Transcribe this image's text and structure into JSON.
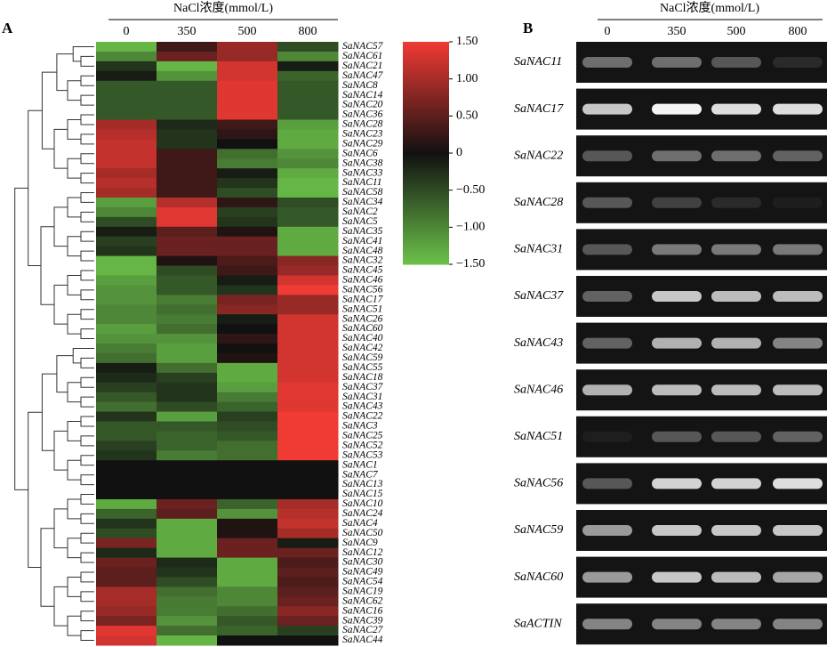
{
  "chart_data": [
    {
      "type": "heatmap",
      "panel_label": "A",
      "x_title": "NaCl浓度(mmol/L)",
      "categories": [
        "0",
        "350",
        "500",
        "800"
      ],
      "rows": [
        "SaNAC57",
        "SaNAC61",
        "SaNAC21",
        "SaNAC47",
        "SaNAC8",
        "SaNAC14",
        "SaNAC20",
        "SaNAC36",
        "SaNAC28",
        "SaNAC23",
        "SaNAC29",
        "SaNAC6",
        "SaNAC38",
        "SaNAC33",
        "SaNAC11",
        "SaNAC58",
        "SaNAC34",
        "SaNAC2",
        "SaNAC5",
        "SaNAC35",
        "SaNAC41",
        "SaNAC48",
        "SaNAC32",
        "SaNAC45",
        "SaNAC46",
        "SaNAC56",
        "SaNAC17",
        "SaNAC51",
        "SaNAC26",
        "SaNAC60",
        "SaNAC40",
        "SaNAC42",
        "SaNAC59",
        "SaNAC55",
        "SaNAC18",
        "SaNAC37",
        "SaNAC31",
        "SaNAC43",
        "SaNAC22",
        "SaNAC3",
        "SaNAC25",
        "SaNAC52",
        "SaNAC53",
        "SaNAC1",
        "SaNAC7",
        "SaNAC13",
        "SaNAC15",
        "SaNAC10",
        "SaNAC24",
        "SaNAC4",
        "SaNAC50",
        "SaNAC9",
        "SaNAC12",
        "SaNAC30",
        "SaNAC49",
        "SaNAC54",
        "SaNAC19",
        "SaNAC62",
        "SaNAC16",
        "SaNAC39",
        "SaNAC27",
        "SaNAC44"
      ],
      "values": [
        [
          -1.4,
          0.3,
          0.9,
          -0.5
        ],
        [
          -1.0,
          0.6,
          0.9,
          -1.0
        ],
        [
          -0.3,
          -1.4,
          1.3,
          -0.1
        ],
        [
          -0.1,
          -1.1,
          1.3,
          -0.7
        ],
        [
          -0.6,
          -0.6,
          1.4,
          -0.6
        ],
        [
          -0.6,
          -0.6,
          1.4,
          -0.6
        ],
        [
          -0.6,
          -0.6,
          1.4,
          -0.6
        ],
        [
          -0.6,
          -0.6,
          1.4,
          -0.6
        ],
        [
          1.0,
          -0.2,
          0.3,
          -1.2
        ],
        [
          1.1,
          -0.3,
          0.2,
          -1.3
        ],
        [
          1.2,
          -0.3,
          0.0,
          -1.3
        ],
        [
          1.2,
          0.3,
          -0.8,
          -1.1
        ],
        [
          1.2,
          0.3,
          -0.9,
          -1.0
        ],
        [
          1.0,
          0.3,
          -0.1,
          -1.3
        ],
        [
          1.1,
          0.3,
          -0.3,
          -1.4
        ],
        [
          1.0,
          0.3,
          -0.5,
          -1.4
        ],
        [
          -1.2,
          1.1,
          0.2,
          -0.5
        ],
        [
          -1.0,
          1.4,
          -0.4,
          -0.6
        ],
        [
          -0.5,
          1.4,
          -0.3,
          -0.6
        ],
        [
          -0.1,
          0.5,
          0.1,
          -1.3
        ],
        [
          -0.4,
          0.6,
          0.6,
          -1.3
        ],
        [
          -0.3,
          0.6,
          0.6,
          -1.3
        ],
        [
          -1.4,
          0.1,
          0.4,
          0.8
        ],
        [
          -1.4,
          -0.5,
          0.3,
          0.9
        ],
        [
          -1.2,
          -0.6,
          -0.1,
          1.3
        ],
        [
          -1.1,
          -0.6,
          -0.3,
          1.5
        ],
        [
          -1.1,
          -0.9,
          0.7,
          0.9
        ],
        [
          -1.0,
          -0.8,
          0.8,
          0.9
        ],
        [
          -1.0,
          -0.9,
          -0.1,
          1.3
        ],
        [
          -1.2,
          -0.8,
          0.0,
          1.3
        ],
        [
          -1.1,
          -1.1,
          0.2,
          1.3
        ],
        [
          -0.9,
          -1.2,
          0.0,
          1.3
        ],
        [
          -0.8,
          -1.2,
          0.1,
          1.3
        ],
        [
          -0.1,
          -0.8,
          -1.3,
          1.3
        ],
        [
          -0.2,
          -0.4,
          -1.3,
          1.3
        ],
        [
          -0.4,
          -0.3,
          -1.2,
          1.4
        ],
        [
          -0.6,
          -0.3,
          -0.9,
          1.4
        ],
        [
          -0.8,
          -0.5,
          -0.7,
          1.4
        ],
        [
          -0.3,
          -1.2,
          -0.4,
          1.5
        ],
        [
          -0.6,
          -0.6,
          -0.5,
          1.5
        ],
        [
          -0.6,
          -0.7,
          -0.6,
          1.5
        ],
        [
          -0.4,
          -0.7,
          -0.8,
          1.5
        ],
        [
          -0.3,
          -0.9,
          -0.8,
          1.5
        ],
        [
          0,
          0,
          0,
          0
        ],
        [
          0,
          0,
          0,
          0
        ],
        [
          0,
          0,
          0,
          0
        ],
        [
          0,
          0,
          0,
          0
        ],
        [
          -1.3,
          0.6,
          -0.7,
          1.0
        ],
        [
          -0.7,
          0.5,
          -1.1,
          1.1
        ],
        [
          -0.3,
          -1.3,
          0.1,
          1.2
        ],
        [
          -0.5,
          -1.3,
          0.1,
          1.0
        ],
        [
          0.7,
          -1.3,
          0.6,
          -0.1
        ],
        [
          -0.2,
          -1.3,
          0.6,
          0.6
        ],
        [
          0.6,
          -0.2,
          -1.3,
          0.4
        ],
        [
          0.5,
          -0.3,
          -1.3,
          0.5
        ],
        [
          0.5,
          -0.5,
          -1.3,
          0.4
        ],
        [
          1.0,
          -0.8,
          -1.0,
          0.5
        ],
        [
          1.0,
          -0.9,
          -1.0,
          0.6
        ],
        [
          0.9,
          -0.9,
          -0.8,
          0.8
        ],
        [
          0.7,
          -1.1,
          -0.6,
          0.6
        ],
        [
          1.4,
          -0.8,
          -0.7,
          -0.4
        ],
        [
          1.3,
          -1.4,
          0.0,
          0.0
        ]
      ],
      "clim": [
        -1.5,
        1.5
      ],
      "colors": [
        "#6cc24a",
        "#111111",
        "#f03a34"
      ],
      "cticks": [
        {
          "value": 1.5,
          "label": "1.50"
        },
        {
          "value": 1,
          "label": "1.00"
        },
        {
          "value": 0.5,
          "label": "0.50"
        },
        0,
        {
          "value": -0.5,
          "label": "−0.50"
        },
        {
          "value": -1,
          "label": "−1.00"
        },
        {
          "value": -1.5,
          "label": "−1.50"
        }
      ]
    },
    {
      "type": "gel",
      "panel_label": "B",
      "x_title": "NaCl浓度(mmol/L)",
      "categories": [
        "0",
        "350",
        "500",
        "800"
      ],
      "rows": [
        "SaNAC11",
        "SaNAC17",
        "SaNAC22",
        "SaNAC28",
        "SaNAC31",
        "SaNAC37",
        "SaNAC43",
        "SaNAC46",
        "SaNAC51",
        "SaNAC56",
        "SaNAC59",
        "SaNAC60",
        "SaACTIN"
      ],
      "values": [
        [
          0.4,
          0.4,
          0.3,
          0.1
        ],
        [
          0.8,
          1,
          0.9,
          0.9
        ],
        [
          0.3,
          0.4,
          0.4,
          0.35
        ],
        [
          0.3,
          0.2,
          0.1,
          0.05
        ],
        [
          0.3,
          0.45,
          0.45,
          0.45
        ],
        [
          0.35,
          0.8,
          0.75,
          0.75
        ],
        [
          0.35,
          0.7,
          0.7,
          0.5
        ],
        [
          0.7,
          0.75,
          0.75,
          0.75
        ],
        [
          0.05,
          0.3,
          0.3,
          0.35
        ],
        [
          0.3,
          0.85,
          0.85,
          0.9
        ],
        [
          0.6,
          0.8,
          0.8,
          0.8
        ],
        [
          0.6,
          0.8,
          0.75,
          0.65
        ],
        [
          0.5,
          0.5,
          0.5,
          0.5
        ]
      ],
      "ylim": [
        0,
        1
      ]
    }
  ]
}
